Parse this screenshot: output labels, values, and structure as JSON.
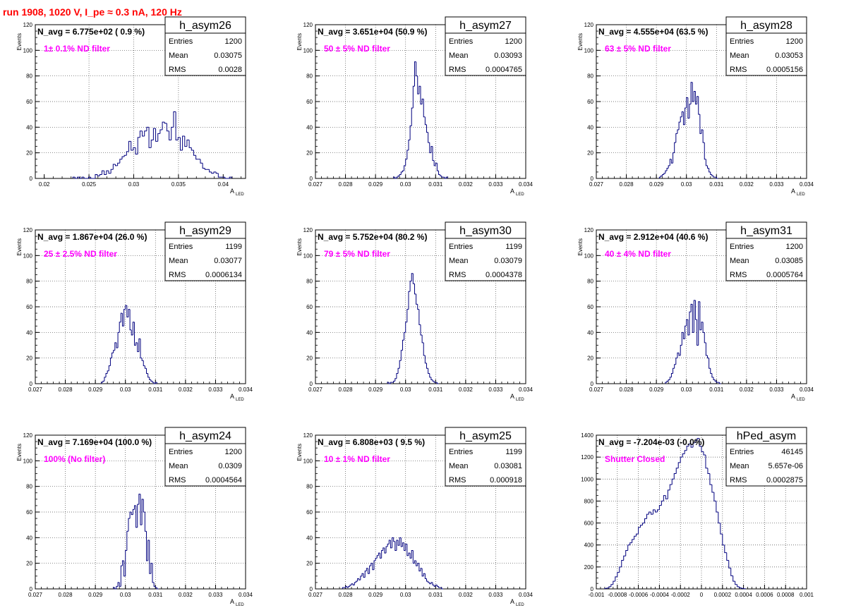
{
  "header": {
    "title": "run 1908,  1020 V, I_pe ≈ 0.3 nA, 120 Hz",
    "title_color": "#ff0000"
  },
  "colors": {
    "hist_line": "#00007f",
    "annotation": "#ff00ff",
    "grid": "#000000"
  },
  "chart_data": [
    {
      "type": "bar",
      "name": "h_asym26",
      "stats": {
        "entries_label": "Entries",
        "entries": "1200",
        "mean_label": "Mean",
        "mean": "0.03075",
        "rms_label": "RMS",
        "rms": "0.0028"
      },
      "navg_text": "N_avg = 6.775e+02 ( 0.9 %)",
      "filter_text": "1± 0.1% ND filter",
      "xlabel": "A",
      "xlabel_sub": "LED",
      "ylabel": "Events",
      "xlim": [
        0.019,
        0.0425
      ],
      "ylim": [
        0,
        120
      ],
      "xticks": [
        0.02,
        0.025,
        0.03,
        0.035,
        0.04
      ],
      "xtick_labels": [
        "0.02",
        "0.025",
        "0.03",
        "0.035",
        "0.04"
      ],
      "yticks": [
        0,
        20,
        40,
        60,
        80,
        100,
        120
      ],
      "bin_start": 0.0232,
      "bin_width": 0.00025,
      "values": [
        1,
        0,
        1,
        0,
        1,
        0,
        0,
        1,
        0,
        0,
        3,
        2,
        3,
        6,
        3,
        6,
        4,
        7,
        11,
        10,
        12,
        15,
        17,
        18,
        21,
        29,
        22,
        24,
        19,
        32,
        37,
        33,
        37,
        40,
        24,
        30,
        39,
        29,
        35,
        38,
        44,
        43,
        37,
        30,
        40,
        52,
        30,
        32,
        22,
        33,
        25,
        30,
        24,
        22,
        18,
        15,
        15,
        12,
        8,
        7,
        7,
        5,
        4,
        5,
        4,
        1,
        1,
        1,
        0,
        0,
        1
      ]
    },
    {
      "type": "bar",
      "name": "h_asym27",
      "stats": {
        "entries_label": "Entries",
        "entries": "1200",
        "mean_label": "Mean",
        "mean": "0.03093",
        "rms_label": "RMS",
        "rms": "0.0004765"
      },
      "navg_text": "N_avg = 3.651e+04 (50.9 %)",
      "filter_text": "50 ± 5% ND filter",
      "xlabel": "A",
      "xlabel_sub": "LED",
      "ylabel": "Events",
      "xlim": [
        0.027,
        0.034
      ],
      "ylim": [
        0,
        120
      ],
      "xticks": [
        0.027,
        0.028,
        0.029,
        0.03,
        0.031,
        0.032,
        0.033,
        0.034
      ],
      "xtick_labels": [
        "0.027",
        "0.028",
        "0.029",
        "0.03",
        "0.031",
        "0.032",
        "0.033",
        "0.034"
      ],
      "yticks": [
        0,
        20,
        40,
        60,
        80,
        100,
        120
      ],
      "bin_start": 0.0296,
      "bin_width": 5e-05,
      "values": [
        1,
        0,
        1,
        2,
        3,
        5,
        6,
        10,
        15,
        22,
        30,
        41,
        55,
        72,
        91,
        80,
        66,
        72,
        58,
        62,
        48,
        42,
        36,
        28,
        20,
        25,
        14,
        10,
        12,
        6,
        3,
        2,
        1,
        1,
        0,
        1
      ]
    },
    {
      "type": "bar",
      "name": "h_asym28",
      "stats": {
        "entries_label": "Entries",
        "entries": "1200",
        "mean_label": "Mean",
        "mean": "0.03053",
        "rms_label": "RMS",
        "rms": "0.0005156"
      },
      "navg_text": "N_avg = 4.555e+04 (63.5 %)",
      "filter_text": "63 ± 5% ND filter",
      "xlabel": "A",
      "xlabel_sub": "LED",
      "ylabel": "Events",
      "xlim": [
        0.027,
        0.034
      ],
      "ylim": [
        0,
        120
      ],
      "xticks": [
        0.027,
        0.028,
        0.029,
        0.03,
        0.031,
        0.032,
        0.033,
        0.034
      ],
      "xtick_labels": [
        "0.027",
        "0.028",
        "0.029",
        "0.03",
        "0.031",
        "0.032",
        "0.033",
        "0.034"
      ],
      "yticks": [
        0,
        20,
        40,
        60,
        80,
        100,
        120
      ],
      "bin_start": 0.0291,
      "bin_width": 5e-05,
      "values": [
        1,
        2,
        3,
        4,
        6,
        8,
        10,
        15,
        12,
        20,
        28,
        35,
        38,
        44,
        48,
        52,
        42,
        55,
        63,
        47,
        58,
        75,
        60,
        68,
        58,
        64,
        50,
        35,
        38,
        28,
        15,
        10,
        8,
        5,
        3,
        2,
        1,
        1,
        0
      ]
    },
    {
      "type": "bar",
      "name": "h_asym29",
      "stats": {
        "entries_label": "Entries",
        "entries": "1199",
        "mean_label": "Mean",
        "mean": "0.03077",
        "rms_label": "RMS",
        "rms": "0.0006134"
      },
      "navg_text": "N_avg = 1.867e+04 (26.0 %)",
      "filter_text": "25 ± 2.5% ND filter",
      "xlabel": "A",
      "xlabel_sub": "LED",
      "ylabel": "Events",
      "xlim": [
        0.027,
        0.034
      ],
      "ylim": [
        0,
        120
      ],
      "xticks": [
        0.027,
        0.028,
        0.029,
        0.03,
        0.031,
        0.032,
        0.033,
        0.034
      ],
      "xtick_labels": [
        "0.027",
        "0.028",
        "0.029",
        "0.03",
        "0.031",
        "0.032",
        "0.033",
        "0.034"
      ],
      "yticks": [
        0,
        20,
        40,
        60,
        80,
        100,
        120
      ],
      "bin_start": 0.0292,
      "bin_width": 5e-05,
      "values": [
        1,
        2,
        5,
        8,
        10,
        14,
        20,
        24,
        26,
        32,
        28,
        40,
        48,
        55,
        45,
        58,
        61,
        52,
        58,
        42,
        38,
        48,
        30,
        32,
        25,
        35,
        20,
        18,
        14,
        12,
        8,
        5,
        3,
        2,
        1,
        0,
        1
      ]
    },
    {
      "type": "bar",
      "name": "h_asym30",
      "stats": {
        "entries_label": "Entries",
        "entries": "1199",
        "mean_label": "Mean",
        "mean": "0.03079",
        "rms_label": "RMS",
        "rms": "0.0004378"
      },
      "navg_text": "N_avg = 5.752e+04 (80.2 %)",
      "filter_text": "79 ± 5% ND filter",
      "xlabel": "A",
      "xlabel_sub": "LED",
      "ylabel": "Events",
      "xlim": [
        0.027,
        0.034
      ],
      "ylim": [
        0,
        120
      ],
      "xticks": [
        0.027,
        0.028,
        0.029,
        0.03,
        0.031,
        0.032,
        0.033,
        0.034
      ],
      "xtick_labels": [
        "0.027",
        "0.028",
        "0.029",
        "0.03",
        "0.031",
        "0.032",
        "0.033",
        "0.034"
      ],
      "yticks": [
        0,
        20,
        40,
        60,
        80,
        100,
        120
      ],
      "bin_start": 0.0294,
      "bin_width": 5e-05,
      "values": [
        1,
        0,
        1,
        1,
        2,
        4,
        8,
        12,
        18,
        26,
        34,
        40,
        48,
        58,
        72,
        80,
        86,
        78,
        70,
        62,
        58,
        46,
        38,
        32,
        22,
        16,
        12,
        8,
        5,
        3,
        2,
        1,
        1,
        0
      ]
    },
    {
      "type": "bar",
      "name": "h_asym31",
      "stats": {
        "entries_label": "Entries",
        "entries": "1200",
        "mean_label": "Mean",
        "mean": "0.03085",
        "rms_label": "RMS",
        "rms": "0.0005764"
      },
      "navg_text": "N_avg = 2.912e+04 (40.6 %)",
      "filter_text": "40 ± 4% ND filter",
      "xlabel": "A",
      "xlabel_sub": "LED",
      "ylabel": "Events",
      "xlim": [
        0.027,
        0.034
      ],
      "ylim": [
        0,
        120
      ],
      "xticks": [
        0.027,
        0.028,
        0.029,
        0.03,
        0.031,
        0.032,
        0.033,
        0.034
      ],
      "xtick_labels": [
        "0.027",
        "0.028",
        "0.029",
        "0.03",
        "0.031",
        "0.032",
        "0.033",
        "0.034"
      ],
      "yticks": [
        0,
        20,
        40,
        60,
        80,
        100,
        120
      ],
      "bin_start": 0.0293,
      "bin_width": 5e-05,
      "values": [
        1,
        2,
        3,
        5,
        8,
        12,
        15,
        20,
        24,
        22,
        30,
        40,
        35,
        45,
        50,
        38,
        56,
        62,
        40,
        65,
        50,
        30,
        64,
        42,
        48,
        40,
        32,
        22,
        20,
        12,
        8,
        5,
        3,
        2,
        1,
        1,
        0
      ]
    },
    {
      "type": "bar",
      "name": "h_asym24",
      "stats": {
        "entries_label": "Entries",
        "entries": "1200",
        "mean_label": "Mean",
        "mean": "0.0309",
        "rms_label": "RMS",
        "rms": "0.0004564"
      },
      "navg_text": "N_avg = 7.169e+04 (100.0 %)",
      "filter_text": "100% (No filter)",
      "xlabel": "A",
      "xlabel_sub": "LED",
      "ylabel": "Events",
      "xlim": [
        0.027,
        0.034
      ],
      "ylim": [
        0,
        120
      ],
      "xticks": [
        0.027,
        0.028,
        0.029,
        0.03,
        0.031,
        0.032,
        0.033,
        0.034
      ],
      "xtick_labels": [
        "0.027",
        "0.028",
        "0.029",
        "0.03",
        "0.031",
        "0.032",
        "0.033",
        "0.034"
      ],
      "yticks": [
        0,
        20,
        40,
        60,
        80,
        100,
        120
      ],
      "bin_start": 0.0296,
      "bin_width": 5e-05,
      "values": [
        1,
        0,
        2,
        5,
        2,
        18,
        22,
        10,
        30,
        45,
        55,
        60,
        58,
        62,
        65,
        48,
        66,
        74,
        50,
        70,
        60,
        45,
        22,
        38,
        12,
        20,
        5,
        2,
        1,
        0
      ]
    },
    {
      "type": "bar",
      "name": "h_asym25",
      "stats": {
        "entries_label": "Entries",
        "entries": "1199",
        "mean_label": "Mean",
        "mean": "0.03081",
        "rms_label": "RMS",
        "rms": "0.000918"
      },
      "navg_text": "N_avg = 6.808e+03 ( 9.5 %)",
      "filter_text": "10 ± 1% ND filter",
      "xlabel": "A",
      "xlabel_sub": "LED",
      "ylabel": "Events",
      "xlim": [
        0.027,
        0.034
      ],
      "ylim": [
        0,
        120
      ],
      "xticks": [
        0.027,
        0.028,
        0.029,
        0.03,
        0.031,
        0.032,
        0.033,
        0.034
      ],
      "xtick_labels": [
        "0.027",
        "0.028",
        "0.029",
        "0.03",
        "0.031",
        "0.032",
        "0.033",
        "0.034"
      ],
      "yticks": [
        0,
        20,
        40,
        60,
        80,
        100,
        120
      ],
      "bin_start": 0.0279,
      "bin_width": 5e-05,
      "values": [
        1,
        1,
        2,
        1,
        2,
        3,
        4,
        3,
        5,
        6,
        8,
        7,
        10,
        12,
        9,
        14,
        16,
        12,
        18,
        20,
        15,
        22,
        24,
        26,
        28,
        24,
        30,
        32,
        28,
        33,
        35,
        38,
        32,
        40,
        37,
        30,
        38,
        34,
        40,
        33,
        36,
        30,
        35,
        26,
        28,
        24,
        30,
        20,
        22,
        18,
        20,
        14,
        16,
        10,
        12,
        8,
        6,
        5,
        4,
        5,
        3,
        2,
        3,
        2,
        1,
        1,
        0
      ]
    },
    {
      "type": "bar",
      "name": "hPed_asym",
      "stats": {
        "entries_label": "Entries",
        "entries": "46145",
        "mean_label": "Mean",
        "mean": "5.657e-06",
        "rms_label": "RMS",
        "rms": "0.0002875"
      },
      "navg_text": "N_avg = -7.204e-03 (-0.0%)",
      "filter_text": "Shutter Closed",
      "xlabel": "",
      "xlabel_sub": "",
      "ylabel": "",
      "xlim": [
        -0.001,
        0.001
      ],
      "ylim": [
        0,
        1400
      ],
      "xticks": [
        -0.001,
        -0.0008,
        -0.0006,
        -0.0004,
        -0.0002,
        0,
        0.0002,
        0.0004,
        0.0006,
        0.0008,
        0.001
      ],
      "xtick_labels": [
        "-0.001",
        "-0.0008",
        "-0.0006",
        "-0.0004",
        "-0.0002",
        "0",
        "0.0002",
        "0.0004",
        "0.0006",
        "0.0008",
        "0.001"
      ],
      "yticks": [
        0,
        200,
        400,
        600,
        800,
        1000,
        1200,
        1400
      ],
      "bin_start": -0.00092,
      "bin_width": 2e-05,
      "values": [
        4,
        8,
        20,
        40,
        70,
        110,
        150,
        200,
        260,
        300,
        350,
        400,
        420,
        450,
        480,
        500,
        560,
        580,
        600,
        640,
        680,
        700,
        680,
        720,
        700,
        720,
        760,
        800,
        850,
        820,
        900,
        950,
        1000,
        1050,
        1100,
        1150,
        1200,
        1230,
        1260,
        1300,
        1320,
        1290,
        1330,
        1350,
        1370,
        1300,
        1250,
        1220,
        1100,
        1050,
        950,
        880,
        800,
        700,
        600,
        500,
        400,
        330,
        260,
        190,
        120,
        70,
        40,
        20,
        10,
        5,
        2
      ]
    }
  ]
}
